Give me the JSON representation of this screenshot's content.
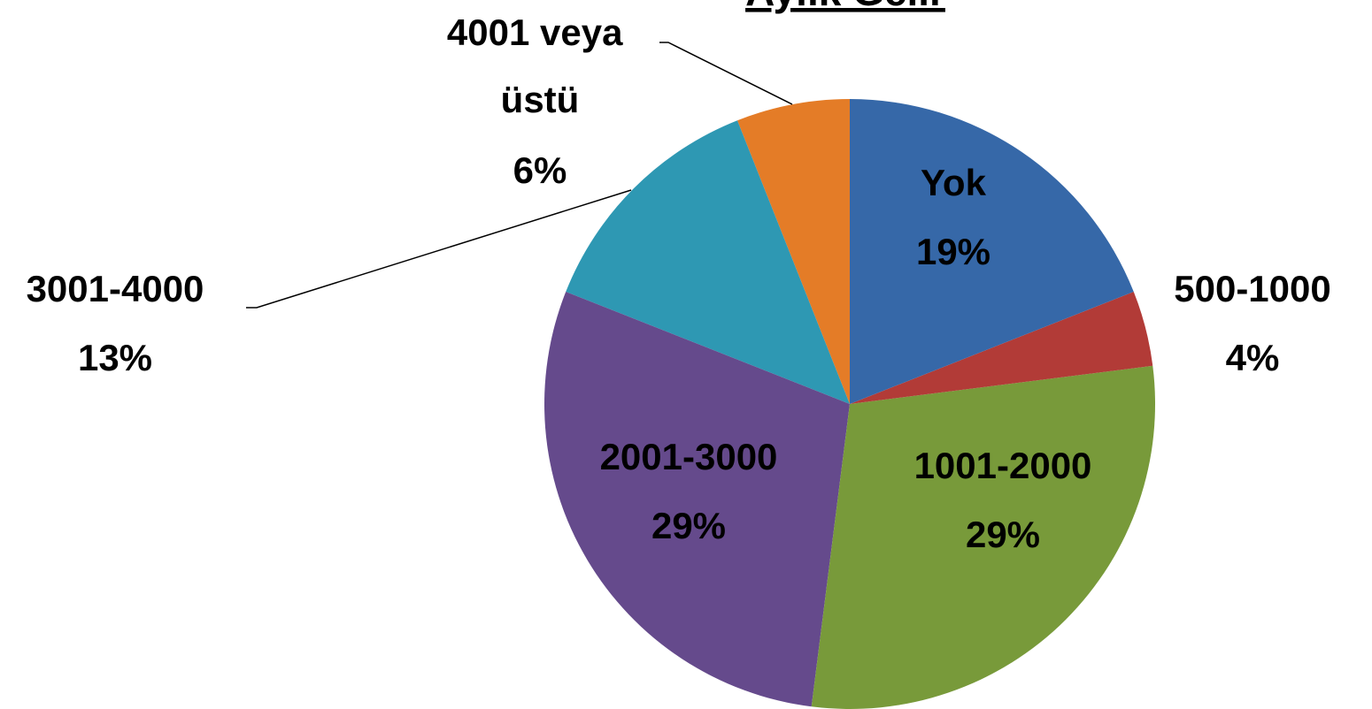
{
  "chart_data": {
    "type": "pie",
    "title": "Aylık Gelir",
    "categories": [
      "Yok",
      "500-1000",
      "1001-2000",
      "2001-3000",
      "3001-4000",
      "4001 veya üstü"
    ],
    "values": [
      19,
      4,
      29,
      29,
      13,
      6
    ],
    "value_labels": [
      "19%",
      "4%",
      "29%",
      "29%",
      "13%",
      "6%"
    ],
    "colors": [
      "#3668a8",
      "#b23b37",
      "#789a3a",
      "#654a8c",
      "#2e98b3",
      "#e47c27"
    ]
  }
}
